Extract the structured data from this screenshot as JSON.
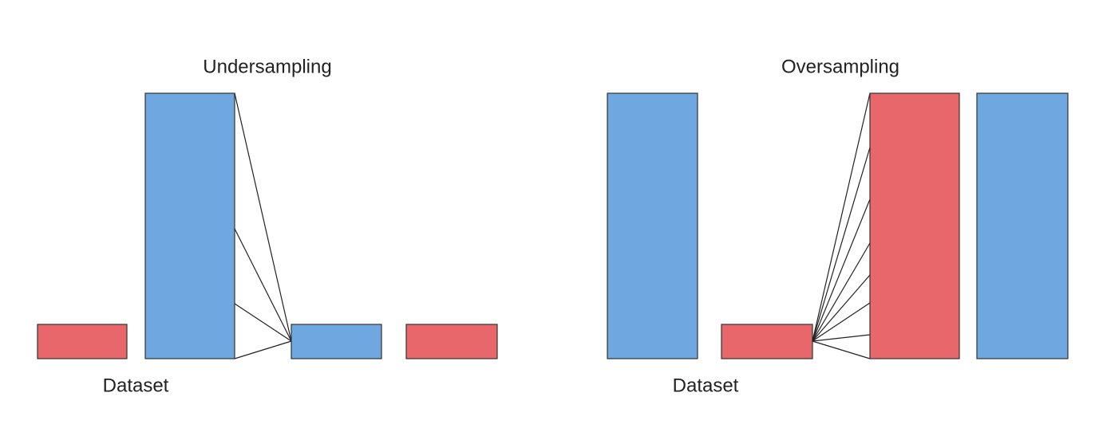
{
  "undersampling": {
    "title": "Undersampling",
    "label": "Dataset"
  },
  "oversampling": {
    "title": "Oversampling",
    "label": "Dataset"
  }
}
